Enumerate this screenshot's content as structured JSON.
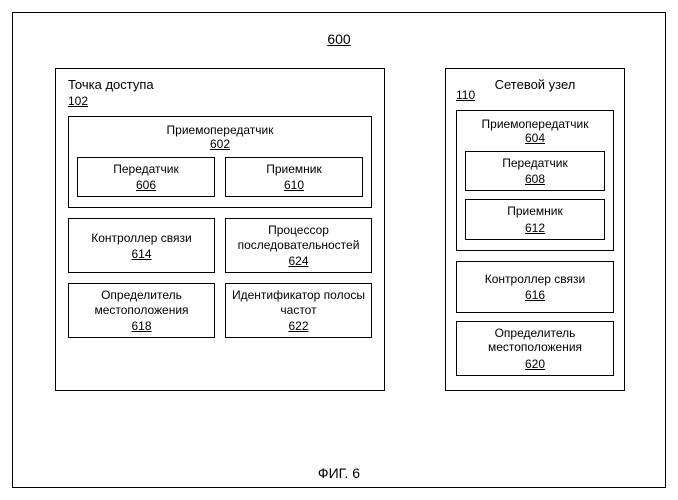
{
  "figure": {
    "number": "600",
    "caption": "ФИГ. 6",
    "border_color": "#000000",
    "background_color": "#ffffff",
    "font_family": "Arial",
    "font_size_base": 12
  },
  "access_point": {
    "title": "Точка доступа",
    "ref": "102",
    "transceiver": {
      "title": "Приемопередатчик",
      "ref": "602",
      "transmitter": {
        "title": "Передатчик",
        "ref": "606"
      },
      "receiver": {
        "title": "Приемник",
        "ref": "610"
      }
    },
    "comm_controller": {
      "title": "Контроллер связи",
      "ref": "614"
    },
    "seq_processor": {
      "title": "Процессор последовательностей",
      "ref": "624"
    },
    "locator": {
      "title": "Определитель местоположения",
      "ref": "618"
    },
    "freq_id": {
      "title": "Идентификатор полосы частот",
      "ref": "622"
    }
  },
  "network_node": {
    "title": "Сетевой узел",
    "ref": "110",
    "transceiver": {
      "title": "Приемопередатчик",
      "ref": "604",
      "transmitter": {
        "title": "Передатчик",
        "ref": "608"
      },
      "receiver": {
        "title": "Приемник",
        "ref": "612"
      }
    },
    "comm_controller": {
      "title": "Контроллер связи",
      "ref": "616"
    },
    "locator": {
      "title": "Определитель местоположения",
      "ref": "620"
    }
  }
}
